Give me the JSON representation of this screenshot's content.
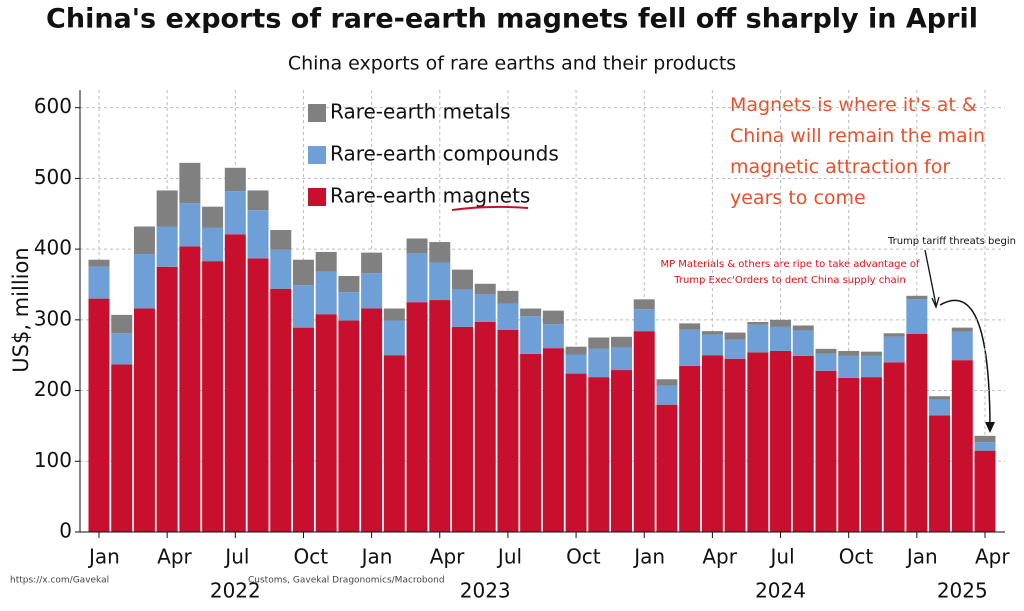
{
  "chart_data": {
    "type": "stacked_bar",
    "title": "China's exports of rare-earth magnets fell off sharply in April",
    "subtitle": "China exports of rare earths and their products",
    "y_label": "US$, million",
    "categories": [
      "Jan",
      null,
      null,
      "Apr",
      null,
      null,
      "Jul",
      null,
      null,
      "Oct",
      null,
      null,
      "Jan",
      null,
      null,
      "Apr",
      null,
      null,
      "Jul",
      null,
      null,
      "Oct",
      null,
      null,
      "Jan",
      null,
      null,
      "Apr",
      null,
      null,
      "Jul",
      null,
      null,
      "Oct",
      null,
      null,
      "Jan",
      null,
      null,
      "Apr"
    ],
    "years": [
      null,
      null,
      null,
      null,
      null,
      null,
      "2022",
      null,
      null,
      null,
      null,
      null,
      null,
      null,
      null,
      null,
      null,
      "2023",
      null,
      null,
      null,
      null,
      null,
      null,
      null,
      null,
      null,
      null,
      null,
      null,
      "2024",
      null,
      null,
      null,
      null,
      null,
      null,
      null,
      "2025",
      null
    ],
    "series": [
      {
        "name": "Rare-earth magnets",
        "color": "#c8102e",
        "values": [
          330,
          237,
          316,
          375,
          404,
          383,
          421,
          387,
          344,
          289,
          308,
          299,
          316,
          250,
          325,
          328,
          290,
          297,
          286,
          252,
          260,
          224,
          219,
          229,
          284,
          180,
          235,
          250,
          245,
          254,
          256,
          249,
          228,
          218,
          219,
          240,
          280,
          165,
          243,
          115
        ]
      },
      {
        "name": "Rare-earth compounds",
        "color": "#6e9fd6",
        "values": [
          45,
          44,
          77,
          57,
          61,
          47,
          61,
          68,
          55,
          60,
          60,
          40,
          50,
          49,
          69,
          53,
          53,
          39,
          37,
          53,
          34,
          27,
          40,
          32,
          31,
          27,
          51,
          29,
          27,
          39,
          34,
          36,
          24,
          31,
          30,
          36,
          49,
          22,
          40,
          12
        ]
      },
      {
        "name": "Rare-earth metals",
        "color": "#808080",
        "values": [
          10,
          26,
          39,
          51,
          57,
          30,
          33,
          28,
          28,
          36,
          28,
          23,
          29,
          17,
          21,
          29,
          28,
          15,
          18,
          11,
          19,
          11,
          16,
          15,
          14,
          9,
          9,
          5,
          10,
          4,
          10,
          7,
          7,
          7,
          6,
          5,
          5,
          5,
          6,
          9
        ]
      }
    ],
    "ylim": [
      0,
      625
    ],
    "yticks": [
      0,
      100,
      200,
      300,
      400,
      500,
      600
    ],
    "grid": true,
    "annotations": {
      "comment": "Magnets is where it's at & China will remain the main magnetic attraction for years to come",
      "mp_note": "MP Materials & others are ripe to take advantage of Trump Exec'Orders to dent China supply chain",
      "tariff": "Trump tariff threats begin"
    },
    "source": "Customs, Gavekal Dragonomics/Macrobond",
    "credit": "https://x.com/Gavekal"
  }
}
